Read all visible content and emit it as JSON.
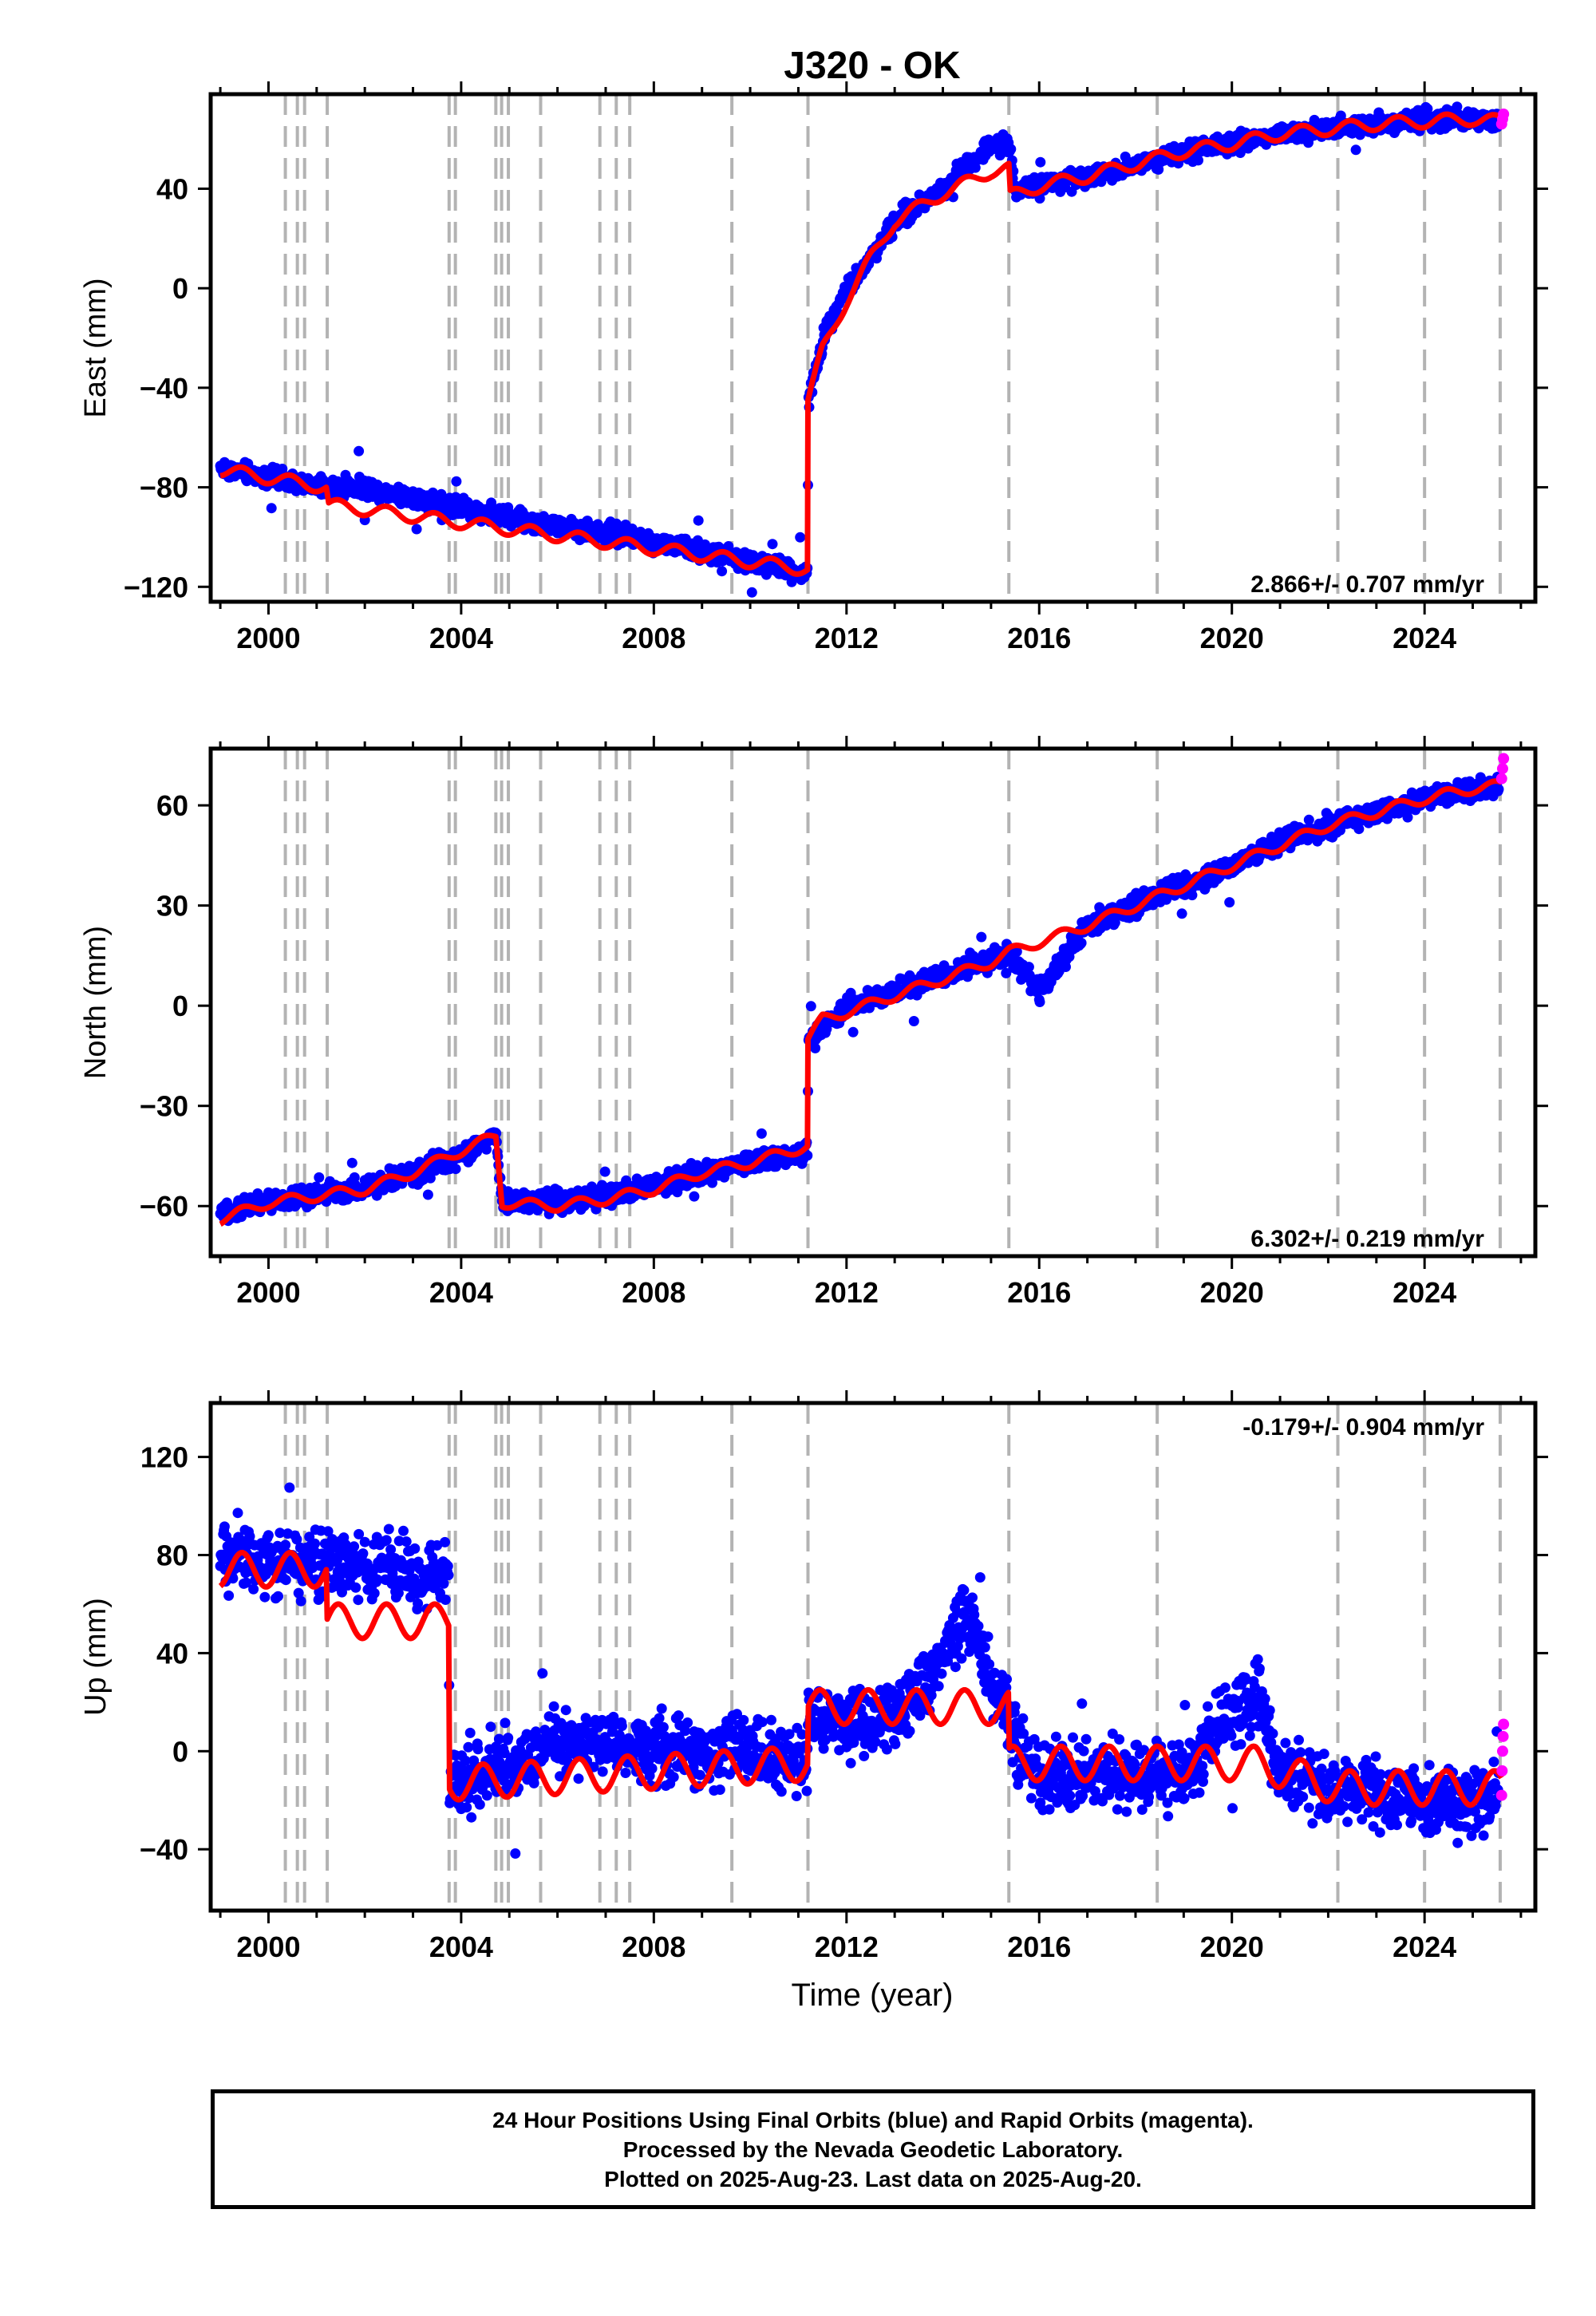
{
  "title": "J320 - OK",
  "x_axis_label": "Time (year)",
  "colors": {
    "final_orbits": "#0000ff",
    "rapid_orbits": "#ff00ff",
    "model_fit": "#ff0000",
    "event_lines": "#b3b3b3"
  },
  "event_line_years": [
    2000.35,
    2000.6,
    2000.75,
    2001.22,
    2003.75,
    2003.88,
    2004.72,
    2004.84,
    2004.98,
    2005.65,
    2006.88,
    2007.22,
    2007.5,
    2009.62,
    2011.2,
    2015.37,
    2018.45,
    2022.2,
    2024.0,
    2025.57
  ],
  "footer": {
    "line1": "24 Hour Positions Using Final Orbits (blue) and Rapid Orbits (magenta).",
    "line2": "Processed by the Nevada Geodetic Laboratory.",
    "line3": "Plotted on 2025-Aug-23. Last data on 2025-Aug-20."
  },
  "chart_data": [
    {
      "type": "scatter",
      "component": "east",
      "ylabel": "East (mm)",
      "rate_label": "2.866+/- 0.707 mm/yr",
      "xlim": [
        1998.8,
        2026.3
      ],
      "ylim": [
        -126,
        78
      ],
      "xticks": [
        2000,
        2004,
        2008,
        2012,
        2016,
        2020,
        2024
      ],
      "yticks": [
        -120,
        -80,
        -40,
        0,
        40
      ],
      "series": [
        {
          "role": "final",
          "x": [
            1999.0,
            2000.0,
            2001.0,
            2002.0,
            2003.0,
            2004.0,
            2005.0,
            2006.0,
            2007.0,
            2008.0,
            2009.0,
            2010.0,
            2011.0,
            2011.19,
            2011.21,
            2011.6,
            2012.0,
            2012.5,
            2013.0,
            2013.5,
            2014.0,
            2014.5,
            2015.0,
            2015.37,
            2015.5,
            2016.0,
            2017.0,
            2018.0,
            2019.0,
            2020.0,
            2021.0,
            2022.0,
            2023.0,
            2024.0,
            2025.0,
            2025.55
          ],
          "y": [
            -72,
            -76,
            -80,
            -80,
            -84,
            -88,
            -92,
            -96,
            -98,
            -102,
            -106,
            -110,
            -114,
            -114,
            -45,
            -15,
            0,
            12,
            27,
            33,
            40,
            50,
            57,
            58,
            40,
            41,
            45,
            50,
            54,
            58,
            62,
            64,
            66,
            68,
            68,
            67
          ]
        },
        {
          "role": "rapid",
          "x": [
            2025.6,
            2025.62,
            2025.64
          ],
          "y": [
            66,
            68,
            70
          ]
        },
        {
          "role": "model",
          "x": [
            1999.0,
            2001.2,
            2001.25,
            2011.19,
            2011.2,
            2011.5,
            2012.0,
            2012.5,
            2013.0,
            2014.0,
            2015.0,
            2015.37,
            2015.4,
            2016.0,
            2017.0,
            2018.0,
            2019.0,
            2020.0,
            2021.0,
            2022.0,
            2023.0,
            2024.0,
            2025.0,
            2025.6
          ],
          "y": [
            -73,
            -80,
            -87,
            -113,
            -45,
            -25,
            -5,
            12,
            27,
            38,
            47,
            48,
            37,
            41,
            45,
            50,
            55,
            58,
            62,
            64,
            66,
            67,
            68,
            67
          ]
        }
      ]
    },
    {
      "type": "scatter",
      "component": "north",
      "ylabel": "North (mm)",
      "rate_label": "6.302+/- 0.219 mm/yr",
      "xlim": [
        1998.8,
        2026.3
      ],
      "ylim": [
        -75,
        77
      ],
      "xticks": [
        2000,
        2004,
        2008,
        2012,
        2016,
        2020,
        2024
      ],
      "yticks": [
        -60,
        -30,
        0,
        30,
        60
      ],
      "series": [
        {
          "role": "final",
          "x": [
            1999.0,
            2000.0,
            2001.0,
            2002.0,
            2003.0,
            2003.75,
            2004.5,
            2004.72,
            2004.85,
            2006.0,
            2007.0,
            2008.0,
            2009.0,
            2010.0,
            2011.19,
            2011.21,
            2012.0,
            2013.0,
            2014.0,
            2015.0,
            2015.37,
            2016.0,
            2017.0,
            2018.0,
            2019.0,
            2020.0,
            2021.0,
            2022.0,
            2023.0,
            2024.0,
            2025.0,
            2025.55
          ],
          "y": [
            -62,
            -59,
            -57,
            -54,
            -50,
            -46,
            -41,
            -38,
            -58,
            -59,
            -57,
            -54,
            -50,
            -47,
            -44,
            -10,
            0,
            4,
            9,
            14,
            16,
            4,
            24,
            30,
            36,
            42,
            49,
            54,
            58,
            62,
            65,
            66
          ]
        },
        {
          "role": "rapid",
          "x": [
            2025.6,
            2025.62,
            2025.64
          ],
          "y": [
            68,
            71,
            74
          ]
        },
        {
          "role": "model",
          "x": [
            1999.0,
            2000.0,
            2001.0,
            2002.0,
            2003.0,
            2003.75,
            2004.72,
            2004.85,
            2006.0,
            2007.0,
            2008.0,
            2009.0,
            2010.0,
            2011.19,
            2011.2,
            2011.5,
            2012.0,
            2013.0,
            2014.0,
            2015.0,
            2015.37,
            2016.0,
            2017.0,
            2018.0,
            2019.0,
            2020.0,
            2021.0,
            2022.0,
            2023.0,
            2024.0,
            2025.0,
            2025.6
          ],
          "y": [
            -64,
            -59,
            -57,
            -55,
            -50,
            -45,
            -39,
            -59,
            -60,
            -58,
            -55,
            -50,
            -47,
            -42,
            -10,
            -4,
            -2,
            3,
            8,
            13,
            16,
            19,
            24,
            30,
            36,
            42,
            48,
            54,
            58,
            62,
            65,
            66
          ]
        }
      ]
    },
    {
      "type": "scatter",
      "component": "up",
      "ylabel": "Up (mm)",
      "rate_label": "-0.179+/- 0.904 mm/yr",
      "xlim": [
        1998.8,
        2026.3
      ],
      "ylim": [
        -65,
        142
      ],
      "xticks": [
        2000,
        2004,
        2008,
        2012,
        2016,
        2020,
        2024
      ],
      "yticks": [
        -40,
        0,
        40,
        80,
        120
      ],
      "series": [
        {
          "role": "final",
          "x": [
            1999.0,
            2000.0,
            2001.0,
            2001.22,
            2002.0,
            2003.0,
            2003.74,
            2003.76,
            2005.0,
            2006.0,
            2007.0,
            2008.0,
            2009.0,
            2010.0,
            2011.19,
            2011.21,
            2012.0,
            2013.0,
            2013.5,
            2014.5,
            2015.0,
            2015.37,
            2016.0,
            2017.0,
            2018.0,
            2019.0,
            2019.5,
            2020.5,
            2021.0,
            2022.0,
            2023.0,
            2024.0,
            2025.0,
            2025.55
          ],
          "y": [
            80,
            78,
            76,
            78,
            76,
            74,
            72,
            -12,
            -5,
            5,
            3,
            0,
            0,
            0,
            -5,
            15,
            10,
            15,
            25,
            55,
            30,
            10,
            -12,
            -10,
            -10,
            -10,
            5,
            25,
            -10,
            -15,
            -18,
            -20,
            -22,
            -15
          ]
        },
        {
          "role": "rapid",
          "x": [
            2025.6,
            2025.61,
            2025.62,
            2025.63,
            2025.64
          ],
          "y": [
            -18,
            -8,
            0,
            6,
            11
          ]
        },
        {
          "role": "model",
          "x": [
            1999.0,
            2001.2,
            2001.22,
            2003.74,
            2003.76,
            2011.19,
            2011.21,
            2015.36,
            2015.38,
            2020.5,
            2022.2,
            2025.6
          ],
          "y": [
            74,
            74,
            53,
            53,
            -13,
            -5,
            18,
            18,
            -5,
            -5,
            -15,
            -15
          ]
        }
      ]
    }
  ]
}
